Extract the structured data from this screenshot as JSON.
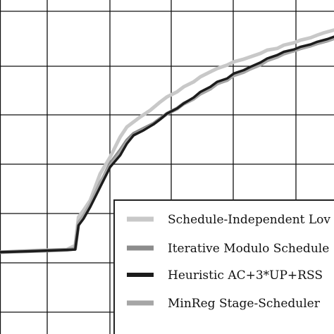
{
  "chart_data": {
    "type": "line",
    "title": "",
    "xlabel": "",
    "ylabel": "",
    "xlim": [
      0,
      100
    ],
    "ylim": [
      0,
      100
    ],
    "grid": true,
    "legend_placement": "bottom-right",
    "series": [
      {
        "name": "Schedule-Independent Lov",
        "color": "#c8c8c8",
        "x": [
          0,
          10,
          20,
          22.5,
          23.5,
          25,
          27,
          30,
          33,
          36,
          38,
          40,
          42,
          45,
          48,
          50,
          53,
          55,
          58,
          60,
          63,
          65,
          68,
          70,
          73,
          75,
          78,
          80,
          83,
          85,
          88,
          90,
          93,
          95,
          97,
          100
        ],
        "y": [
          24.5,
          25.0,
          25.3,
          26.5,
          35.0,
          37.0,
          40.0,
          48.0,
          53.0,
          59.0,
          62.0,
          63.5,
          65.0,
          67.0,
          69.5,
          71.0,
          72.5,
          74.0,
          75.5,
          77.0,
          78.5,
          79.5,
          80.5,
          81.5,
          82.3,
          83.0,
          84.0,
          85.0,
          85.5,
          86.5,
          87.2,
          88.0,
          88.7,
          89.5,
          90.2,
          91.0
        ]
      },
      {
        "name": "Iterative Modulo Schedule",
        "color": "#8c8c8c",
        "x": [
          0,
          10,
          20,
          22.5,
          23.5,
          25,
          27,
          30,
          33,
          36,
          38,
          40,
          43,
          46,
          48,
          50,
          53,
          55,
          58,
          60,
          63,
          65,
          68,
          70,
          73,
          75,
          78,
          80,
          83,
          85,
          88,
          90,
          93,
          95,
          98,
          100
        ],
        "y": [
          24.5,
          24.8,
          25.2,
          25.5,
          33.0,
          35.0,
          38.5,
          45.0,
          51.0,
          55.0,
          58.0,
          60.0,
          61.5,
          63.0,
          64.5,
          66.0,
          67.5,
          69.0,
          70.5,
          72.0,
          73.5,
          75.0,
          76.0,
          77.5,
          78.5,
          79.5,
          80.8,
          82.0,
          83.0,
          84.0,
          84.8,
          85.5,
          86.3,
          87.0,
          87.8,
          88.5
        ]
      },
      {
        "name": "Heuristic AC+3*UP+RSS",
        "color": "#1c1c1c",
        "x": [
          0,
          10,
          20,
          22.5,
          23.5,
          25,
          27,
          30,
          33,
          36,
          38,
          40,
          43,
          46,
          48,
          50,
          53,
          55,
          58,
          60,
          63,
          65,
          68,
          70,
          73,
          75,
          78,
          80,
          83,
          85,
          88,
          90,
          93,
          95,
          98,
          100
        ],
        "y": [
          24.5,
          24.8,
          25.2,
          25.3,
          32.5,
          34.5,
          38.0,
          44.0,
          50.0,
          53.5,
          57.0,
          59.5,
          61.0,
          62.8,
          64.3,
          66.0,
          67.5,
          69.0,
          70.8,
          72.5,
          74.0,
          75.5,
          76.5,
          78.0,
          79.0,
          80.0,
          81.3,
          82.5,
          83.5,
          84.5,
          85.2,
          86.0,
          86.7,
          87.5,
          88.3,
          89.0
        ]
      },
      {
        "name": "MinReg Stage-Scheduler",
        "color": "#a6a6a6",
        "x": [
          0,
          10,
          20,
          22.5,
          23.5,
          25,
          27,
          30,
          33,
          36,
          38,
          40,
          43,
          46,
          48,
          50,
          53,
          55,
          58,
          60,
          63,
          65,
          68,
          70,
          73,
          75,
          78,
          80,
          83,
          85,
          88,
          90,
          93,
          95,
          98,
          100
        ],
        "y": [
          24.5,
          24.8,
          25.2,
          25.5,
          33.5,
          35.5,
          39.0,
          45.5,
          50.5,
          54.5,
          57.5,
          59.5,
          61.2,
          62.8,
          64.3,
          65.8,
          67.3,
          68.8,
          70.3,
          71.8,
          73.3,
          74.8,
          76.0,
          77.3,
          78.3,
          79.3,
          80.5,
          81.8,
          82.8,
          83.8,
          84.7,
          85.5,
          86.2,
          87.0,
          87.8,
          88.5
        ]
      }
    ]
  }
}
